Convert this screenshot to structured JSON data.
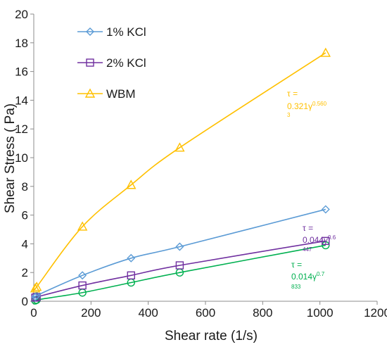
{
  "chart_data": {
    "type": "line",
    "title": "",
    "xlabel": "Shear rate (1/s)",
    "ylabel": "Shear Stress ( Pa)",
    "xlim": [
      0,
      1200
    ],
    "ylim": [
      0,
      20
    ],
    "xticks": [
      0,
      200,
      400,
      600,
      800,
      1000,
      1200
    ],
    "yticks": [
      0,
      2,
      4,
      6,
      8,
      10,
      12,
      14,
      16,
      18,
      20
    ],
    "grid": false,
    "legend_position": "top-left",
    "series": [
      {
        "name": "1% KCl",
        "color": "#5b9bd5",
        "marker": "diamond",
        "x": [
          5.1,
          10.2,
          170,
          340,
          510,
          1020
        ],
        "y": [
          0.3,
          0.4,
          1.8,
          3.0,
          3.8,
          6.4
        ]
      },
      {
        "name": "2% KCl",
        "color": "#7030a0",
        "marker": "square",
        "x": [
          5.1,
          10.2,
          170,
          340,
          510,
          1020
        ],
        "y": [
          0.25,
          0.3,
          1.1,
          1.8,
          2.5,
          4.2
        ]
      },
      {
        "name": "WBM",
        "color": "#ffc000",
        "marker": "triangle",
        "x": [
          5.1,
          10.2,
          170,
          340,
          510,
          1020
        ],
        "y": [
          0.9,
          1.0,
          5.2,
          8.1,
          10.7,
          17.3
        ]
      },
      {
        "name": "",
        "color": "#00b050",
        "marker": "circle",
        "x": [
          5.1,
          10.2,
          170,
          340,
          510,
          1020
        ],
        "y": [
          0.05,
          0.1,
          0.6,
          1.3,
          2.0,
          3.9
        ]
      }
    ],
    "annotations": [
      {
        "lines": [
          "τ =",
          "0.321γ^0.560",
          "3"
        ],
        "color": "#ffc000"
      },
      {
        "lines": [
          "τ =",
          "0.044γ^0.6",
          "447"
        ],
        "color": "#7030a0"
      },
      {
        "lines": [
          "τ =",
          "0.014γ^0.7",
          "833"
        ],
        "color": "#00b050"
      }
    ]
  },
  "labels": {
    "eq_wbm_line1": "τ =",
    "eq_wbm_coef": "0.321γ",
    "eq_wbm_exp": "0.560",
    "eq_wbm_sub": "3",
    "eq_2kcl_line1": "τ =",
    "eq_2kcl_coef": "0.044γ",
    "eq_2kcl_exp": "0.6",
    "eq_2kcl_sub": "447",
    "eq_green_line1": "τ =",
    "eq_green_coef": "0.014γ",
    "eq_green_exp": "0.7",
    "eq_green_sub": "833"
  }
}
